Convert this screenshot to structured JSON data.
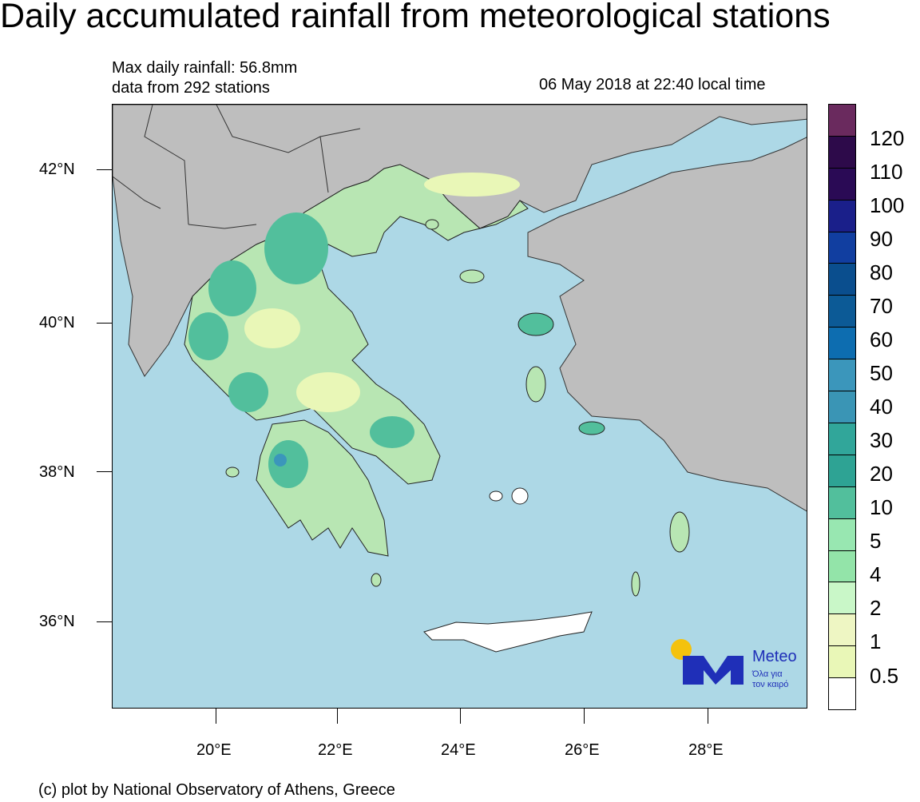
{
  "title": "Daily accumulated rainfall from meteorological stations",
  "info": {
    "max_rainfall": "Max daily rainfall: 56.8mm",
    "stations": "data from 292 stations",
    "timestamp": "06 May 2018 at 22:40 local time"
  },
  "lat_labels": [
    "42°N",
    "40°N",
    "38°N",
    "36°N"
  ],
  "lon_labels": [
    "20°E",
    "22°E",
    "24°E",
    "26°E",
    "28°E"
  ],
  "legend": {
    "labels": [
      "120",
      "110",
      "100",
      "90",
      "80",
      "70",
      "60",
      "50",
      "40",
      "30",
      "20",
      "10",
      "5",
      "4",
      "2",
      "1",
      "0.5"
    ],
    "colors": [
      "#6a2a5e",
      "#2d0a4a",
      "#2a0a55",
      "#1a1f8a",
      "#113ea0",
      "#0a4e8e",
      "#0c5a96",
      "#0d6db0",
      "#3b96bb",
      "#3a95b5",
      "#31a69a",
      "#2ea394",
      "#52bf9c",
      "#98e7b1",
      "#93e4a9",
      "#c9f7c8",
      "#eef6c3",
      "#e9f7b7",
      "#ffffff"
    ]
  },
  "logo": {
    "name": "Meteo",
    "tagline_1": "Όλα για",
    "tagline_2": "τον καιρό",
    "color": "#1f2fb8",
    "sun_color": "#f4c20d"
  },
  "colors": {
    "sea": "#add8e6",
    "land": "#bebebe",
    "greece_base": "#b8e6b3"
  },
  "footer": "(c) plot by National Observatory of Athens, Greece"
}
